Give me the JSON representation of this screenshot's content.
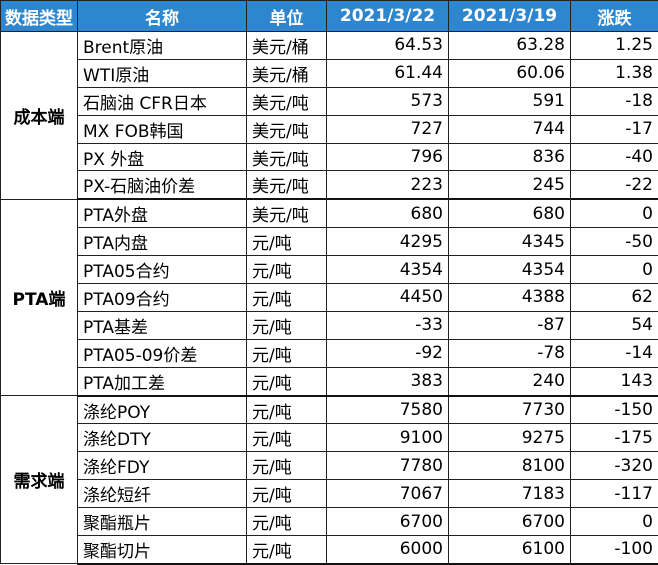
{
  "header": {
    "type": "数据类型",
    "name": "名称",
    "unit": "单位",
    "date1": "2021/3/22",
    "date2": "2021/3/19",
    "change": "涨跌"
  },
  "groups": [
    {
      "label": "成本端",
      "rows": [
        {
          "name": "Brent原油",
          "unit": "美元/桶",
          "v1": "64.53",
          "v2": "63.28",
          "chg": "1.25"
        },
        {
          "name": "WTI原油",
          "unit": "美元/桶",
          "v1": "61.44",
          "v2": "60.06",
          "chg": "1.38"
        },
        {
          "name": "石脑油 CFR日本",
          "unit": "美元/吨",
          "v1": "573",
          "v2": "591",
          "chg": "-18"
        },
        {
          "name": "MX FOB韩国",
          "unit": "美元/吨",
          "v1": "727",
          "v2": "744",
          "chg": "-17"
        },
        {
          "name": "PX  外盘",
          "unit": "美元/吨",
          "v1": "796",
          "v2": "836",
          "chg": "-40"
        },
        {
          "name": "PX-石脑油价差",
          "unit": "美元/吨",
          "v1": "223",
          "v2": "245",
          "chg": "-22"
        }
      ]
    },
    {
      "label": "PTA端",
      "rows": [
        {
          "name": "PTA外盘",
          "unit": "美元/吨",
          "v1": "680",
          "v2": "680",
          "chg": "0"
        },
        {
          "name": "PTA内盘",
          "unit": "元/吨",
          "v1": "4295",
          "v2": "4345",
          "chg": "-50"
        },
        {
          "name": "PTA05合约",
          "unit": "元/吨",
          "v1": "4354",
          "v2": "4354",
          "chg": "0"
        },
        {
          "name": "PTA09合约",
          "unit": "元/吨",
          "v1": "4450",
          "v2": "4388",
          "chg": "62"
        },
        {
          "name": "PTA基差",
          "unit": "元/吨",
          "v1": "-33",
          "v2": "-87",
          "chg": "54"
        },
        {
          "name": "PTA05-09价差",
          "unit": "元/吨",
          "v1": "-92",
          "v2": "-78",
          "chg": "-14"
        },
        {
          "name": "PTA加工差",
          "unit": "元/吨",
          "v1": "383",
          "v2": "240",
          "chg": "143"
        }
      ]
    },
    {
      "label": "需求端",
      "rows": [
        {
          "name": "涤纶POY",
          "unit": "元/吨",
          "v1": "7580",
          "v2": "7730",
          "chg": "-150"
        },
        {
          "name": "涤纶DTY",
          "unit": "元/吨",
          "v1": "9100",
          "v2": "9275",
          "chg": "-175"
        },
        {
          "name": "涤纶FDY",
          "unit": "元/吨",
          "v1": "7780",
          "v2": "8100",
          "chg": "-320"
        },
        {
          "name": "涤纶短纤",
          "unit": "元/吨",
          "v1": "7067",
          "v2": "7183",
          "chg": "-117"
        },
        {
          "name": "聚酯瓶片",
          "unit": "元/吨",
          "v1": "6700",
          "v2": "6700",
          "chg": "0"
        },
        {
          "name": "聚酯切片",
          "unit": "元/吨",
          "v1": "6000",
          "v2": "6100",
          "chg": "-100"
        }
      ]
    }
  ]
}
